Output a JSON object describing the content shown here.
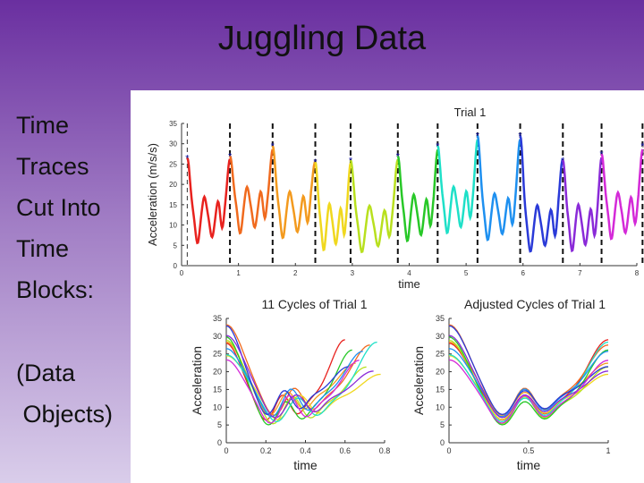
{
  "slide": {
    "title": "Juggling Data",
    "bullets": [
      "Time",
      "Traces",
      "Cut Into",
      "Time",
      "Blocks:"
    ],
    "note_lines": [
      "(Data",
      " Objects)"
    ]
  },
  "colors": {
    "cycles": [
      "#e8221e",
      "#f06a1e",
      "#f39a1e",
      "#f0d81e",
      "#b8e01e",
      "#28c828",
      "#1ee0c8",
      "#1e90f0",
      "#2a3ad8",
      "#8a2ad8",
      "#d42ad8"
    ],
    "tail": "#888888",
    "marker": "#1a1aa8"
  },
  "chart_data": [
    {
      "type": "line",
      "title": "Trial 1",
      "xlabel": "time",
      "ylabel": "Acceleration (m/s/s)",
      "xlim": [
        0,
        8
      ],
      "ylim": [
        0,
        35
      ],
      "xticks": [
        0,
        1,
        2,
        3,
        4,
        5,
        6,
        7,
        8
      ],
      "yticks": [
        0,
        5,
        10,
        15,
        20,
        25,
        30,
        35
      ],
      "cut_times": [
        0.85,
        1.6,
        2.35,
        2.97,
        3.8,
        4.5,
        5.2,
        5.95,
        6.7,
        7.38,
        8.1
      ],
      "peaks": [
        {
          "t": 0.1,
          "v": 26.5
        },
        {
          "t": 0.85,
          "v": 27
        },
        {
          "t": 1.6,
          "v": 29.5
        },
        {
          "t": 2.35,
          "v": 25.5
        },
        {
          "t": 2.97,
          "v": 26
        },
        {
          "t": 3.8,
          "v": 27
        },
        {
          "t": 4.5,
          "v": 29.5
        },
        {
          "t": 5.2,
          "v": 32
        },
        {
          "t": 5.95,
          "v": 32
        },
        {
          "t": 6.7,
          "v": 26
        },
        {
          "t": 7.38,
          "v": 27.5
        },
        {
          "t": 8.1,
          "v": 29.5
        }
      ],
      "tail_end": 8.5,
      "grid": false
    },
    {
      "type": "line",
      "title": "11 Cycles of Trial 1",
      "xlabel": "time",
      "ylabel": "Acceleration",
      "xlim": [
        0,
        0.8
      ],
      "ylim": [
        0,
        35
      ],
      "xticks": [
        0,
        0.2,
        0.4,
        0.6,
        0.8
      ],
      "yticks": [
        0,
        5,
        10,
        15,
        20,
        25,
        30,
        35
      ],
      "series_count": 11
    },
    {
      "type": "line",
      "title": "Adjusted Cycles of Trial 1",
      "xlabel": "time",
      "ylabel": "Acceleration",
      "xlim": [
        0,
        1
      ],
      "ylim": [
        0,
        35
      ],
      "xticks": [
        0,
        0.5,
        1
      ],
      "yticks": [
        0,
        5,
        10,
        15,
        20,
        25,
        30,
        35
      ],
      "series_count": 11
    }
  ]
}
